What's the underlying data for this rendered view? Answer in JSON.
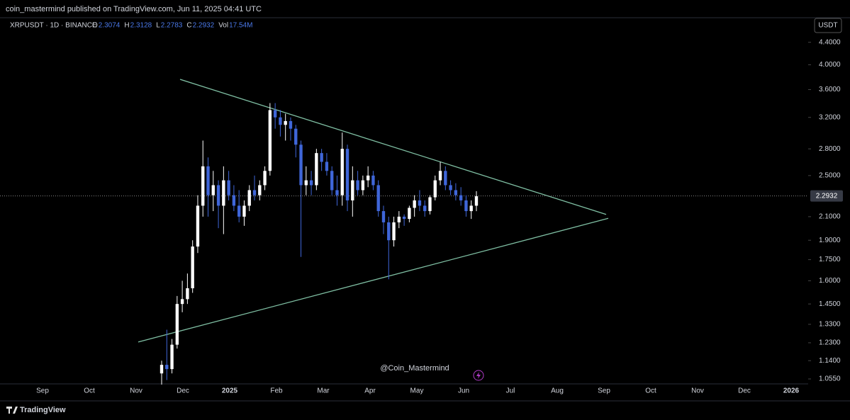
{
  "chart_data": {
    "type": "candlestick",
    "published": "coin_mastermind published on TradingView.com, Jun 11, 2025 04:41 UTC",
    "symbol": "XRPUSDT · 1D · BINANCE",
    "ohlc_legend": [
      {
        "key": "O",
        "value": 2.3074
      },
      {
        "key": "H",
        "value": 2.3128
      },
      {
        "key": "L",
        "value": 2.2783
      },
      {
        "key": "C",
        "value": 2.2932
      },
      {
        "key": "Vol",
        "value": 17540000,
        "label": "17.54M"
      }
    ],
    "currency": "USDT",
    "watermark": "@Coin_Mastermind",
    "brand": "TradingView",
    "last_price": 2.2932,
    "log_scale": true,
    "up_color": "#ffffff",
    "down_color": "#3f66d9",
    "trendline_color": "#7fbfa3",
    "ylim": [
      1.03,
      4.84
    ],
    "yticks": [
      {
        "value": 4.4,
        "label": "4.4000"
      },
      {
        "value": 4.0,
        "label": "4.0000"
      },
      {
        "value": 3.6,
        "label": "3.6000"
      },
      {
        "value": 3.2,
        "label": "3.2000"
      },
      {
        "value": 2.8,
        "label": "2.8000"
      },
      {
        "value": 2.5,
        "label": "2.5000"
      },
      {
        "value": 2.1,
        "label": "2.1000"
      },
      {
        "value": 1.9,
        "label": "1.9000"
      },
      {
        "value": 1.75,
        "label": "1.7500"
      },
      {
        "value": 1.6,
        "label": "1.6000"
      },
      {
        "value": 1.45,
        "label": "1.4500"
      },
      {
        "value": 1.33,
        "label": "1.3300"
      },
      {
        "value": 1.23,
        "label": "1.2300"
      },
      {
        "value": 1.14,
        "label": "1.1400"
      },
      {
        "value": 1.055,
        "label": "1.0550"
      }
    ],
    "xticks": [
      "Sep",
      "Oct",
      "Nov",
      "Dec",
      "2025",
      "Feb",
      "Mar",
      "Apr",
      "May",
      "Jun",
      "Jul",
      "Aug",
      "Sep",
      "Oct",
      "Nov",
      "Dec",
      "2026"
    ],
    "open": [
      1.08,
      1.12,
      1.1,
      1.22,
      1.45,
      1.48,
      1.55,
      1.85,
      2.2,
      2.6,
      2.3,
      2.4,
      2.2,
      2.45,
      2.3,
      2.2,
      2.1,
      2.2,
      2.35,
      2.3,
      2.4,
      2.55,
      3.3,
      3.2,
      3.1,
      3.15,
      3.05,
      2.85,
      2.4,
      2.45,
      2.4,
      2.75,
      2.65,
      2.55,
      2.35,
      2.3,
      2.8,
      2.25,
      2.45,
      2.35,
      2.45,
      2.5,
      2.4,
      2.15,
      2.05,
      1.9,
      2.05,
      2.1,
      2.08,
      2.18,
      2.25,
      2.2,
      2.15,
      2.28,
      2.45,
      2.55,
      2.4,
      2.35,
      2.3,
      2.25,
      2.15,
      2.2
    ],
    "high": [
      1.14,
      1.3,
      1.25,
      1.5,
      1.6,
      1.65,
      1.9,
      2.3,
      2.9,
      2.7,
      2.55,
      2.45,
      2.6,
      2.55,
      2.4,
      2.35,
      2.25,
      2.4,
      2.5,
      2.45,
      2.6,
      3.4,
      3.4,
      3.3,
      3.25,
      3.2,
      3.1,
      2.9,
      2.6,
      2.55,
      2.8,
      2.8,
      2.75,
      2.6,
      2.5,
      3.0,
      2.85,
      2.6,
      2.55,
      2.5,
      2.6,
      2.55,
      2.45,
      2.2,
      2.1,
      2.1,
      2.15,
      2.12,
      2.2,
      2.3,
      2.35,
      2.25,
      2.3,
      2.5,
      2.65,
      2.6,
      2.45,
      2.42,
      2.38,
      2.3,
      2.25,
      2.34
    ],
    "low": [
      1.03,
      1.05,
      1.08,
      1.2,
      1.4,
      1.45,
      1.52,
      1.8,
      2.1,
      2.1,
      2.15,
      2.0,
      1.95,
      2.25,
      2.15,
      2.05,
      2.02,
      2.15,
      2.25,
      2.25,
      2.35,
      2.5,
      3.05,
      2.95,
      2.9,
      2.9,
      2.7,
      1.77,
      2.3,
      2.3,
      2.35,
      2.55,
      2.5,
      2.3,
      2.2,
      2.2,
      2.15,
      2.1,
      2.3,
      2.3,
      2.38,
      2.35,
      2.1,
      1.95,
      1.61,
      1.85,
      2.0,
      2.02,
      2.05,
      2.1,
      2.15,
      2.1,
      2.12,
      2.25,
      2.4,
      2.35,
      2.3,
      2.25,
      2.2,
      2.1,
      2.08,
      2.15
    ],
    "close": [
      1.12,
      1.1,
      1.22,
      1.45,
      1.48,
      1.55,
      1.85,
      2.2,
      2.6,
      2.3,
      2.4,
      2.2,
      2.45,
      2.3,
      2.2,
      2.1,
      2.2,
      2.35,
      2.3,
      2.4,
      2.55,
      3.3,
      3.2,
      3.1,
      3.15,
      3.05,
      2.85,
      2.4,
      2.45,
      2.4,
      2.75,
      2.65,
      2.55,
      2.35,
      2.3,
      2.8,
      2.25,
      2.45,
      2.35,
      2.45,
      2.5,
      2.4,
      2.15,
      2.05,
      1.9,
      2.05,
      2.1,
      2.08,
      2.18,
      2.25,
      2.2,
      2.15,
      2.28,
      2.45,
      2.55,
      2.4,
      2.35,
      2.3,
      2.25,
      2.15,
      2.2,
      2.29
    ],
    "trendlines": [
      {
        "start": 3.76,
        "end": 2.12
      },
      {
        "start": 1.234,
        "end": 2.085
      }
    ]
  }
}
